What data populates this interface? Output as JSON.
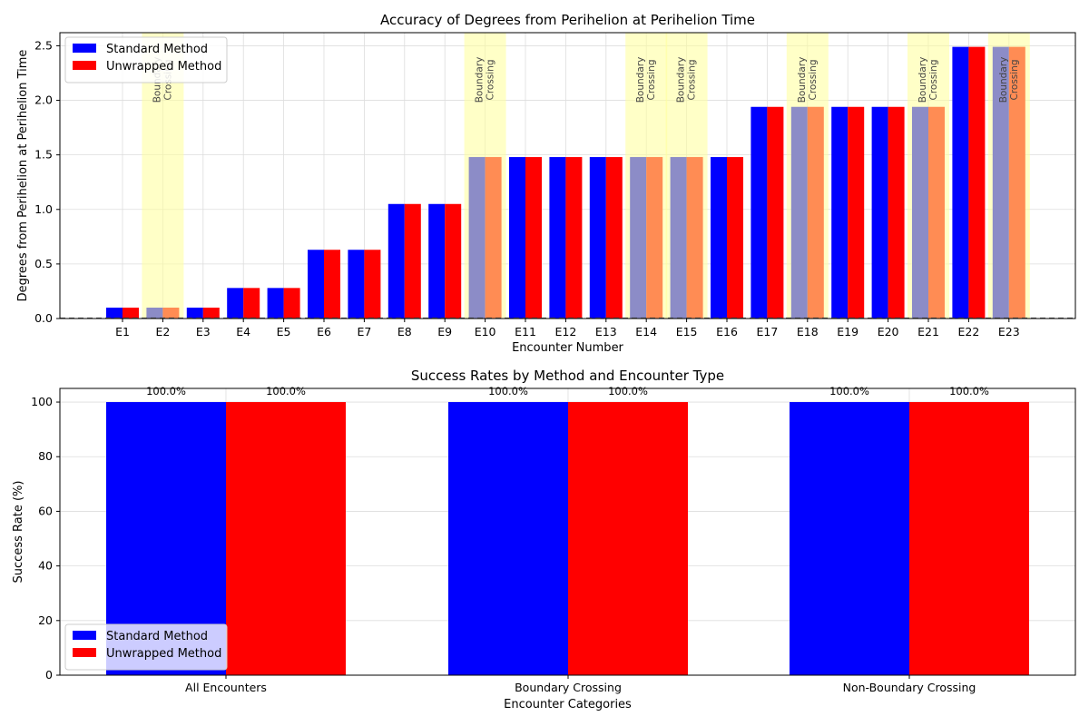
{
  "colors": {
    "standard": "#0000ff",
    "unwrapped": "#ff0000",
    "boundary_highlight": "#ffff99",
    "grid": "#dddddd"
  },
  "chart_data": [
    {
      "type": "bar",
      "title": "Accuracy of Degrees from Perihelion at Perihelion Time",
      "xlabel": "Encounter Number",
      "ylabel": "Degrees from Perihelion at Perihelion Time",
      "ylim": [
        0,
        2.62
      ],
      "yticks": [
        "0.0",
        "0.5",
        "1.0",
        "1.5",
        "2.0",
        "2.5"
      ],
      "grid": true,
      "legend_position": "top-left",
      "categories": [
        "E1",
        "E2",
        "E3",
        "E4",
        "E5",
        "E6",
        "E7",
        "E8",
        "E9",
        "E10",
        "E11",
        "E12",
        "E13",
        "E14",
        "E15",
        "E16",
        "E17",
        "E18",
        "E19",
        "E20",
        "E21",
        "E22",
        "E23"
      ],
      "series": [
        {
          "name": "Standard Method",
          "values": [
            0.1,
            0.1,
            0.1,
            0.28,
            0.28,
            0.63,
            0.63,
            1.05,
            1.05,
            1.48,
            1.48,
            1.48,
            1.48,
            1.48,
            1.48,
            1.48,
            1.94,
            1.94,
            1.94,
            1.94,
            1.94,
            2.49,
            2.49
          ]
        },
        {
          "name": "Unwrapped Method",
          "values": [
            0.1,
            0.1,
            0.1,
            0.28,
            0.28,
            0.63,
            0.63,
            1.05,
            1.05,
            1.48,
            1.48,
            1.48,
            1.48,
            1.48,
            1.48,
            1.48,
            1.94,
            1.94,
            1.94,
            1.94,
            1.94,
            2.49,
            2.49
          ]
        }
      ],
      "boundary_crossing": {
        "label_line1": "Boundary",
        "label_line2": "Crossing",
        "encounters": [
          "E2",
          "E10",
          "E14",
          "E15",
          "E18",
          "E21",
          "E23"
        ]
      },
      "reference_line": {
        "y": 0,
        "style": "dashed"
      }
    },
    {
      "type": "bar",
      "title": "Success Rates by Method and Encounter Type",
      "xlabel": "Encounter Categories",
      "ylabel": "Success Rate (%)",
      "ylim": [
        0,
        105
      ],
      "yticks": [
        "0",
        "20",
        "40",
        "60",
        "80",
        "100"
      ],
      "grid": true,
      "legend_position": "bottom-left",
      "categories": [
        "All Encounters",
        "Boundary Crossing",
        "Non-Boundary Crossing"
      ],
      "series": [
        {
          "name": "Standard Method",
          "values": [
            100,
            100,
            100
          ],
          "labels": [
            "100.0%",
            "100.0%",
            "100.0%"
          ]
        },
        {
          "name": "Unwrapped Method",
          "values": [
            100,
            100,
            100
          ],
          "labels": [
            "100.0%",
            "100.0%",
            "100.0%"
          ]
        }
      ]
    }
  ]
}
